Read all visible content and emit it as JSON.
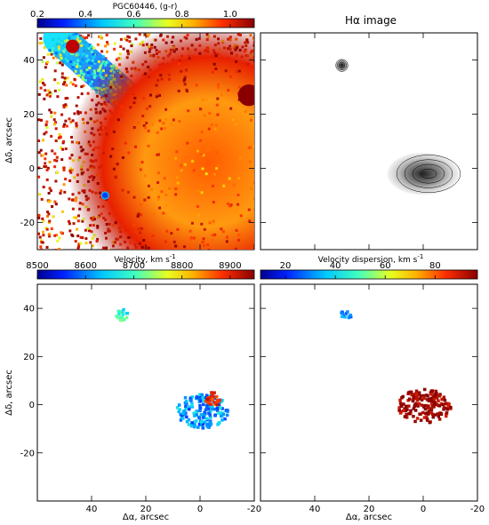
{
  "chart_data": [
    {
      "type": "heatmap",
      "title": "PGC60446, (g-r)",
      "colorbar": {
        "ticks": [
          0.2,
          0.4,
          0.6,
          0.8,
          1.0
        ],
        "range": [
          0.2,
          1.1
        ]
      },
      "xlim": [
        60,
        -20
      ],
      "ylim": [
        -30,
        50
      ],
      "ylabel": "Δδ, arcsec",
      "xlabel": "",
      "yticks": [
        40,
        20,
        0,
        -20
      ],
      "xticks": [],
      "features": [
        {
          "kind": "band",
          "from": [
            52,
            48
          ],
          "to": [
            20,
            20
          ],
          "value": 0.5
        },
        {
          "kind": "blob",
          "x": -3,
          "y": 2,
          "radius": 20,
          "value": 0.85
        },
        {
          "kind": "blob",
          "x": -18,
          "y": 27,
          "radius": 4,
          "value": 1.05
        },
        {
          "kind": "blob",
          "x": 47,
          "y": 45,
          "radius": 2.5,
          "value": 1.0
        }
      ]
    },
    {
      "type": "heatmap",
      "title": "Hα image",
      "xlim": [
        60,
        -20
      ],
      "ylim": [
        -30,
        50
      ],
      "xlabel": "",
      "ylabel": "",
      "xticks": [],
      "yticks": [],
      "features": [
        {
          "kind": "blob",
          "x": 30,
          "y": 38,
          "radius": 2.5
        },
        {
          "kind": "blob",
          "x": 0,
          "y": -2,
          "radius": 6
        }
      ]
    },
    {
      "type": "heatmap",
      "title": "Velocity, km s",
      "title_superscript": "-1",
      "colorbar": {
        "ticks": [
          8500,
          8600,
          8700,
          8800,
          8900
        ],
        "range": [
          8500,
          8950
        ]
      },
      "xlim": [
        60,
        -20
      ],
      "ylim": [
        -40,
        50
      ],
      "xlabel": "Δα, arcsec",
      "ylabel": "Δδ, arcsec",
      "xticks": [
        40,
        20,
        0,
        -20
      ],
      "yticks": [
        40,
        20,
        0,
        -20
      ],
      "features": [
        {
          "kind": "blob",
          "x": 29,
          "y": 38,
          "radius": 2.5,
          "value": 8690
        },
        {
          "kind": "blob",
          "x": 0,
          "y": -2,
          "radius": 7,
          "value": 8620
        },
        {
          "kind": "blob",
          "x": -4,
          "y": 3,
          "radius": 3,
          "value": 8880
        }
      ]
    },
    {
      "type": "heatmap",
      "title": "Velocity dispersion, km s",
      "title_superscript": "-1",
      "colorbar": {
        "ticks": [
          20,
          40,
          60,
          80
        ],
        "range": [
          10,
          97
        ]
      },
      "xlim": [
        60,
        -20
      ],
      "ylim": [
        -40,
        50
      ],
      "xlabel": "Δα, arcsec",
      "ylabel": "",
      "xticks": [
        40,
        20,
        0,
        -20
      ],
      "yticks": [],
      "features": [
        {
          "kind": "blob",
          "x": 29,
          "y": 38,
          "radius": 2,
          "value": 30
        },
        {
          "kind": "blob",
          "x": 0,
          "y": 0,
          "radius": 7,
          "value": 95
        }
      ]
    }
  ]
}
